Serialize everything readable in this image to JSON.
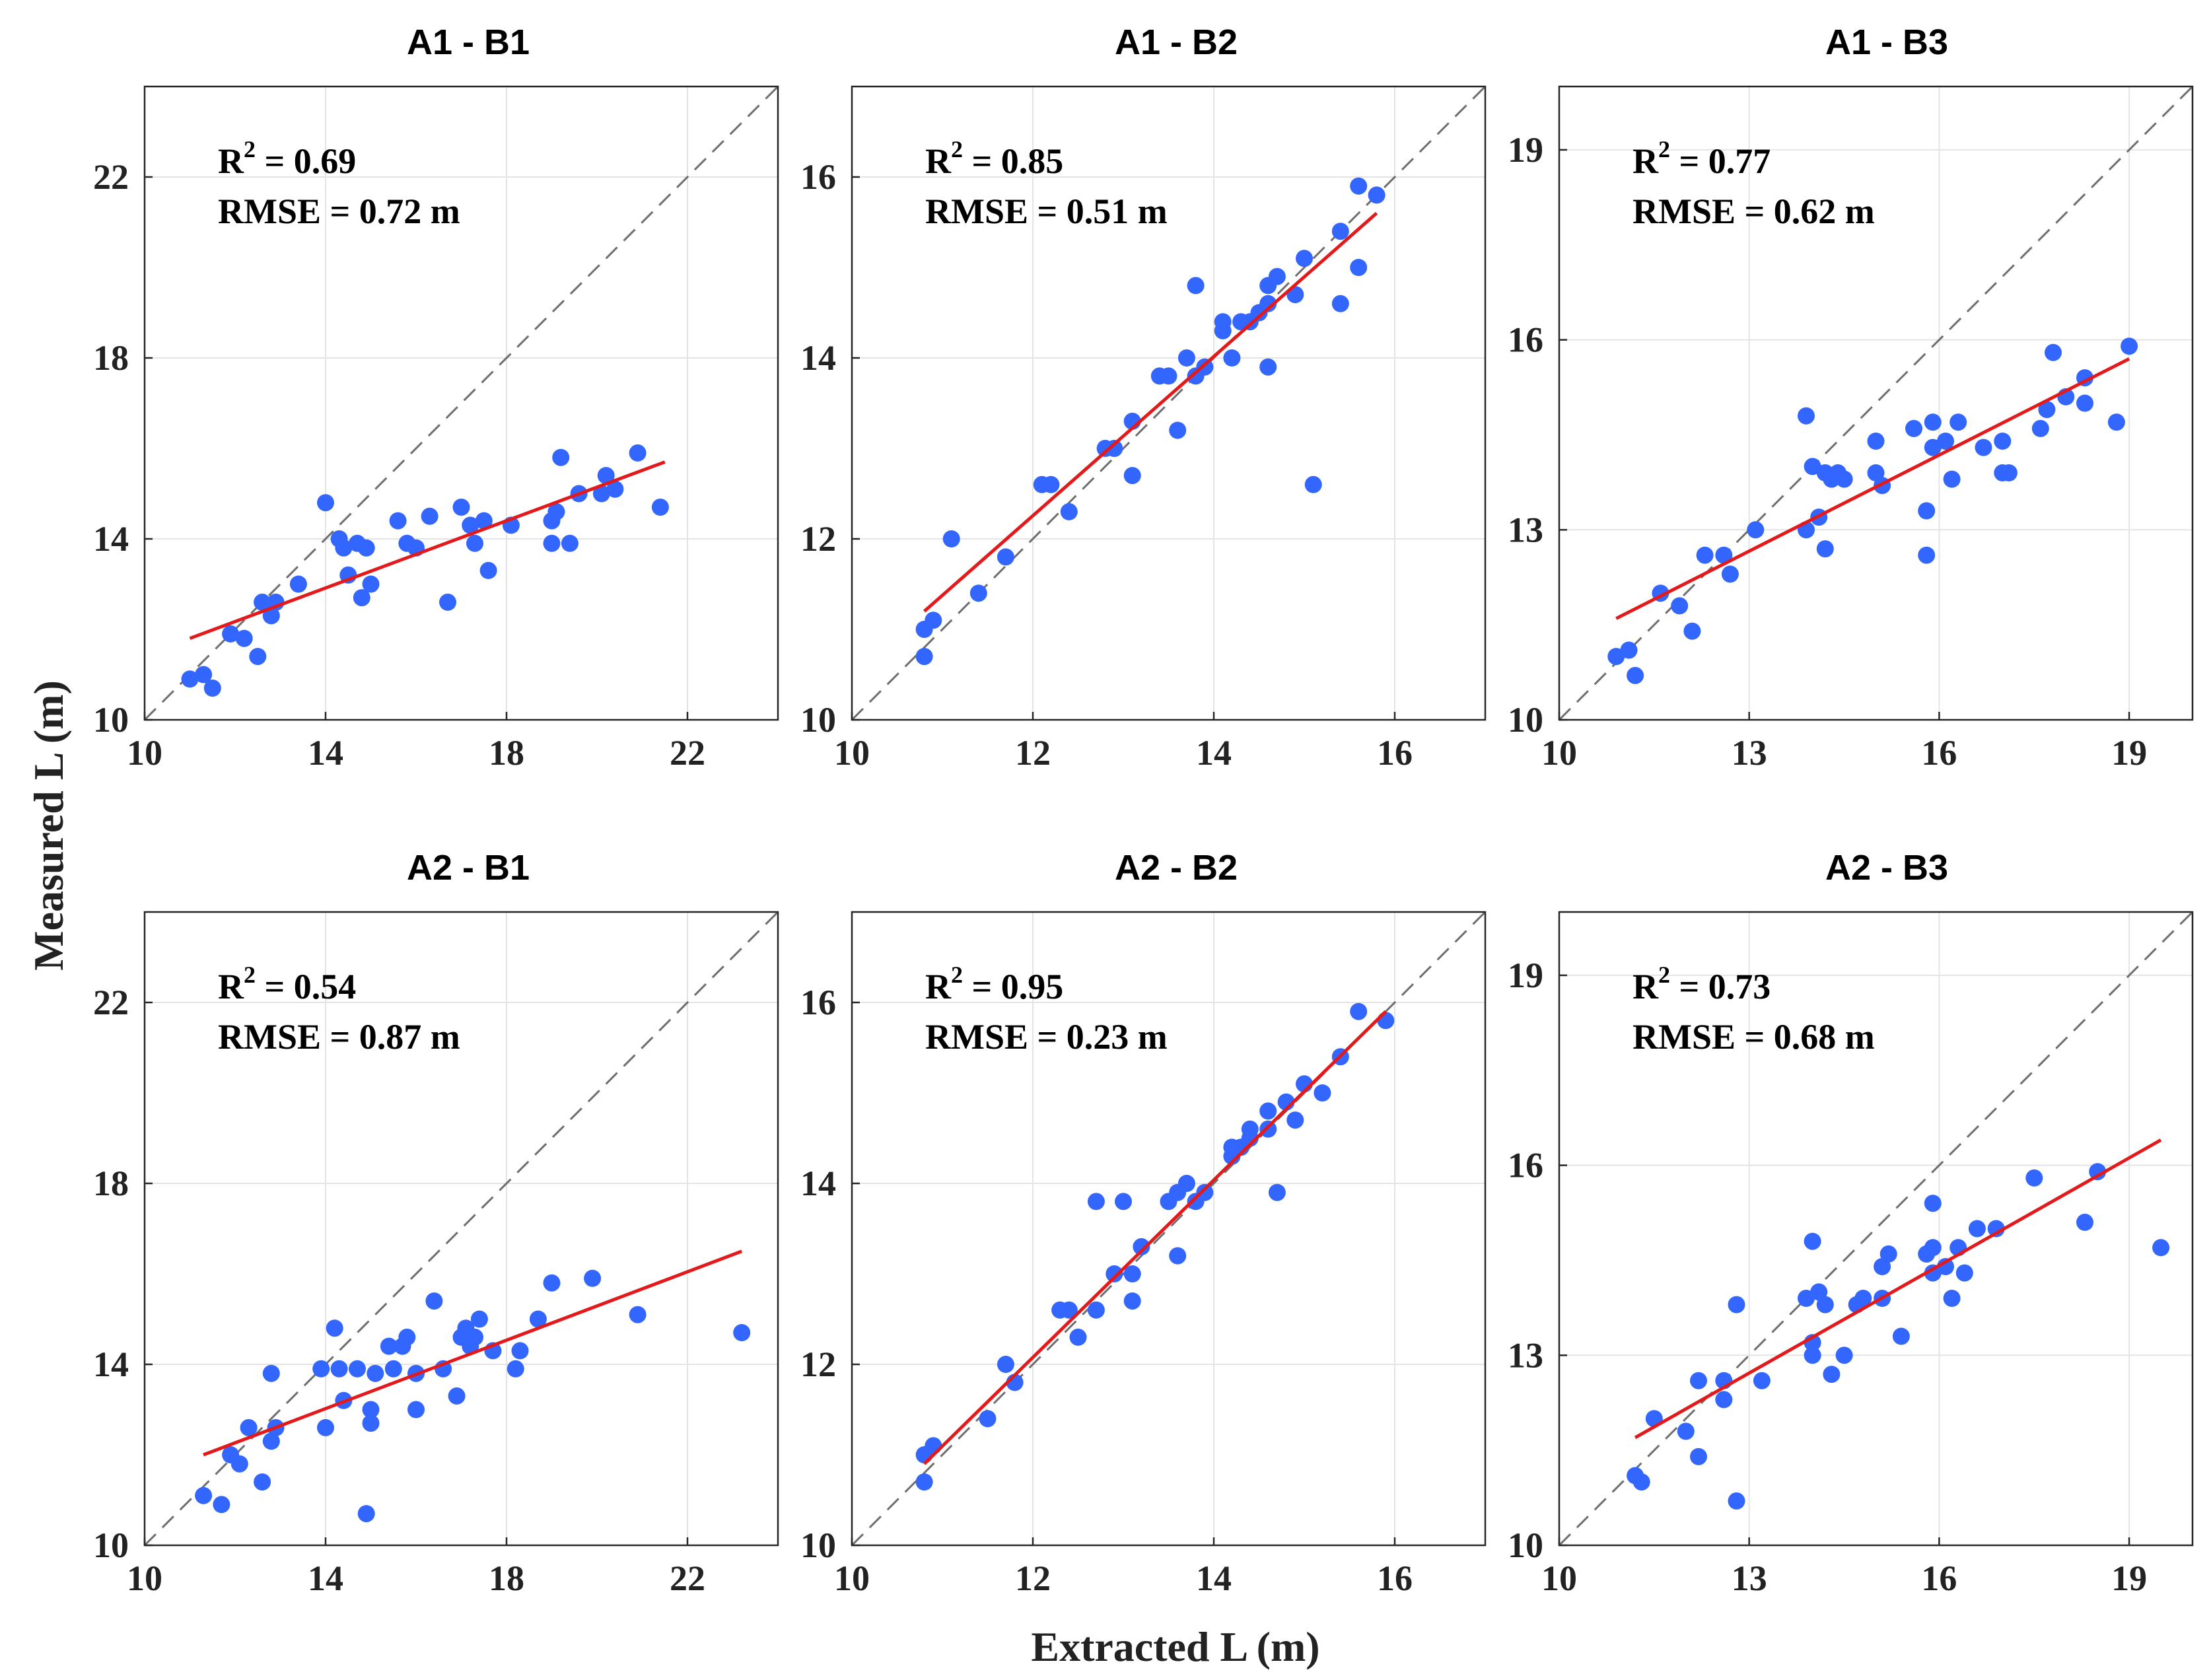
{
  "figure": {
    "ylabel": "Measured L (m)",
    "xlabel": "Extracted L (m)"
  },
  "colors": {
    "points": "#3366ff",
    "fit_line": "#e31a1c",
    "identity_line": "#6e6e6e"
  },
  "chart_data": [
    {
      "type": "scatter",
      "title": "A1 - B1",
      "r2_label": "R",
      "r2_sup": "2",
      "r2_value": " = 0.69",
      "rmse_text": "RMSE = 0.72 m",
      "xlim": [
        10,
        24
      ],
      "ylim": [
        10,
        24
      ],
      "xticks": [
        10,
        14,
        18,
        22
      ],
      "yticks": [
        10,
        14,
        18,
        22
      ],
      "grid": true,
      "identity_line": true,
      "fit_line": [
        [
          11.0,
          11.8
        ],
        [
          21.5,
          15.7
        ]
      ],
      "points": [
        [
          11.0,
          10.9
        ],
        [
          11.3,
          11.0
        ],
        [
          11.5,
          10.7
        ],
        [
          11.9,
          11.9
        ],
        [
          12.2,
          11.8
        ],
        [
          12.5,
          11.4
        ],
        [
          12.6,
          12.6
        ],
        [
          12.8,
          12.3
        ],
        [
          12.9,
          12.6
        ],
        [
          13.4,
          13.0
        ],
        [
          14.0,
          14.8
        ],
        [
          14.3,
          14.0
        ],
        [
          14.4,
          13.8
        ],
        [
          14.5,
          13.2
        ],
        [
          14.7,
          13.9
        ],
        [
          14.8,
          12.7
        ],
        [
          14.9,
          13.8
        ],
        [
          15.0,
          13.0
        ],
        [
          15.6,
          14.4
        ],
        [
          15.8,
          13.9
        ],
        [
          16.0,
          13.8
        ],
        [
          16.3,
          14.5
        ],
        [
          16.7,
          12.6
        ],
        [
          17.0,
          14.7
        ],
        [
          17.2,
          14.3
        ],
        [
          17.3,
          13.9
        ],
        [
          17.5,
          14.4
        ],
        [
          17.6,
          13.3
        ],
        [
          18.1,
          14.3
        ],
        [
          19.0,
          13.9
        ],
        [
          19.0,
          14.4
        ],
        [
          19.1,
          14.6
        ],
        [
          19.2,
          15.8
        ],
        [
          19.4,
          13.9
        ],
        [
          19.6,
          15.0
        ],
        [
          20.1,
          15.0
        ],
        [
          20.2,
          15.4
        ],
        [
          20.4,
          15.1
        ],
        [
          20.9,
          15.9
        ],
        [
          21.4,
          14.7
        ]
      ]
    },
    {
      "type": "scatter",
      "title": "A1 - B2",
      "r2_label": "R",
      "r2_sup": "2",
      "r2_value": " = 0.85",
      "rmse_text": "RMSE = 0.51 m",
      "xlim": [
        10,
        17
      ],
      "ylim": [
        10,
        17
      ],
      "xticks": [
        10,
        12,
        14,
        16
      ],
      "yticks": [
        10,
        12,
        14,
        16
      ],
      "grid": true,
      "identity_line": true,
      "fit_line": [
        [
          10.8,
          11.2
        ],
        [
          15.8,
          15.6
        ]
      ],
      "points": [
        [
          10.8,
          10.7
        ],
        [
          10.8,
          11.0
        ],
        [
          10.9,
          11.1
        ],
        [
          11.1,
          12.0
        ],
        [
          11.4,
          11.4
        ],
        [
          11.7,
          11.8
        ],
        [
          12.1,
          12.6
        ],
        [
          12.2,
          12.6
        ],
        [
          12.4,
          12.3
        ],
        [
          12.8,
          13.0
        ],
        [
          12.9,
          13.0
        ],
        [
          13.1,
          12.7
        ],
        [
          13.1,
          13.3
        ],
        [
          13.4,
          13.8
        ],
        [
          13.5,
          13.8
        ],
        [
          13.6,
          13.2
        ],
        [
          13.7,
          14.0
        ],
        [
          13.8,
          14.8
        ],
        [
          13.8,
          13.8
        ],
        [
          13.9,
          13.9
        ],
        [
          14.1,
          14.3
        ],
        [
          14.1,
          14.4
        ],
        [
          14.2,
          14.0
        ],
        [
          14.3,
          14.4
        ],
        [
          14.4,
          14.4
        ],
        [
          14.5,
          14.5
        ],
        [
          14.6,
          13.9
        ],
        [
          14.6,
          14.6
        ],
        [
          14.6,
          14.8
        ],
        [
          14.7,
          14.9
        ],
        [
          14.9,
          14.7
        ],
        [
          15.0,
          15.1
        ],
        [
          15.1,
          12.6
        ],
        [
          15.4,
          14.6
        ],
        [
          15.4,
          15.4
        ],
        [
          15.6,
          15.0
        ],
        [
          15.6,
          15.9
        ],
        [
          15.8,
          15.8
        ]
      ]
    },
    {
      "type": "scatter",
      "title": "A1 - B3",
      "r2_label": "R",
      "r2_sup": "2",
      "r2_value": " = 0.77",
      "rmse_text": "RMSE = 0.62 m",
      "xlim": [
        10,
        20
      ],
      "ylim": [
        10,
        20
      ],
      "xticks": [
        10,
        13,
        16,
        19
      ],
      "yticks": [
        10,
        13,
        16,
        19
      ],
      "grid": true,
      "identity_line": true,
      "fit_line": [
        [
          10.9,
          11.6
        ],
        [
          19.0,
          15.7
        ]
      ],
      "points": [
        [
          10.9,
          11.0
        ],
        [
          11.1,
          11.1
        ],
        [
          11.2,
          10.7
        ],
        [
          11.6,
          12.0
        ],
        [
          11.9,
          11.8
        ],
        [
          12.1,
          11.4
        ],
        [
          12.3,
          12.6
        ],
        [
          12.6,
          12.6
        ],
        [
          12.7,
          12.3
        ],
        [
          13.1,
          13.0
        ],
        [
          13.9,
          13.0
        ],
        [
          13.9,
          14.8
        ],
        [
          14.0,
          14.0
        ],
        [
          14.1,
          13.2
        ],
        [
          14.2,
          12.7
        ],
        [
          14.2,
          13.9
        ],
        [
          14.3,
          13.8
        ],
        [
          14.4,
          13.9
        ],
        [
          14.5,
          13.8
        ],
        [
          15.0,
          13.9
        ],
        [
          15.0,
          14.4
        ],
        [
          15.1,
          13.7
        ],
        [
          15.6,
          14.6
        ],
        [
          15.8,
          13.3
        ],
        [
          15.8,
          12.6
        ],
        [
          15.9,
          14.3
        ],
        [
          15.9,
          14.7
        ],
        [
          16.1,
          14.4
        ],
        [
          16.2,
          13.8
        ],
        [
          16.3,
          14.7
        ],
        [
          16.7,
          14.3
        ],
        [
          17.0,
          13.9
        ],
        [
          17.0,
          14.4
        ],
        [
          17.1,
          13.9
        ],
        [
          17.6,
          14.6
        ],
        [
          17.7,
          14.9
        ],
        [
          17.8,
          15.8
        ],
        [
          18.0,
          15.1
        ],
        [
          18.3,
          15.4
        ],
        [
          18.3,
          15.0
        ],
        [
          18.8,
          14.7
        ],
        [
          19.0,
          15.9
        ]
      ]
    },
    {
      "type": "scatter",
      "title": "A2 - B1",
      "r2_label": "R",
      "r2_sup": "2",
      "r2_value": " = 0.54",
      "rmse_text": "RMSE = 0.87 m",
      "xlim": [
        10,
        24
      ],
      "ylim": [
        10,
        24
      ],
      "xticks": [
        10,
        14,
        18,
        22
      ],
      "yticks": [
        10,
        14,
        18,
        22
      ],
      "grid": true,
      "identity_line": true,
      "fit_line": [
        [
          11.3,
          12.0
        ],
        [
          23.2,
          16.5
        ]
      ],
      "points": [
        [
          11.3,
          11.1
        ],
        [
          11.7,
          10.9
        ],
        [
          11.9,
          12.0
        ],
        [
          12.1,
          11.8
        ],
        [
          12.3,
          12.6
        ],
        [
          12.6,
          11.4
        ],
        [
          12.8,
          12.3
        ],
        [
          12.8,
          13.8
        ],
        [
          12.9,
          12.6
        ],
        [
          13.9,
          13.9
        ],
        [
          14.0,
          12.6
        ],
        [
          14.2,
          14.8
        ],
        [
          14.3,
          13.9
        ],
        [
          14.4,
          13.2
        ],
        [
          14.7,
          13.9
        ],
        [
          14.9,
          10.7
        ],
        [
          15.0,
          12.7
        ],
        [
          15.0,
          13.0
        ],
        [
          15.1,
          13.8
        ],
        [
          15.4,
          14.4
        ],
        [
          15.5,
          13.9
        ],
        [
          15.7,
          14.4
        ],
        [
          15.8,
          14.6
        ],
        [
          16.0,
          13.8
        ],
        [
          16.0,
          13.0
        ],
        [
          16.4,
          15.4
        ],
        [
          16.6,
          13.9
        ],
        [
          16.9,
          13.3
        ],
        [
          17.0,
          14.6
        ],
        [
          17.1,
          14.8
        ],
        [
          17.2,
          14.4
        ],
        [
          17.3,
          14.6
        ],
        [
          17.4,
          15.0
        ],
        [
          17.7,
          14.3
        ],
        [
          18.2,
          13.9
        ],
        [
          18.3,
          14.3
        ],
        [
          18.7,
          15.0
        ],
        [
          19.0,
          15.8
        ],
        [
          19.9,
          15.9
        ],
        [
          20.9,
          15.1
        ],
        [
          23.2,
          14.7
        ]
      ]
    },
    {
      "type": "scatter",
      "title": "A2 - B2",
      "r2_label": "R",
      "r2_sup": "2",
      "r2_value": " = 0.95",
      "rmse_text": "RMSE = 0.23 m",
      "xlim": [
        10,
        17
      ],
      "ylim": [
        10,
        17
      ],
      "xticks": [
        10,
        12,
        14,
        16
      ],
      "yticks": [
        10,
        12,
        14,
        16
      ],
      "grid": true,
      "identity_line": true,
      "fit_line": [
        [
          10.8,
          10.9
        ],
        [
          15.9,
          15.9
        ]
      ],
      "points": [
        [
          10.8,
          10.7
        ],
        [
          10.8,
          11.0
        ],
        [
          10.9,
          11.1
        ],
        [
          11.5,
          11.4
        ],
        [
          11.7,
          12.0
        ],
        [
          11.8,
          11.8
        ],
        [
          12.3,
          12.6
        ],
        [
          12.4,
          12.6
        ],
        [
          12.5,
          12.3
        ],
        [
          12.7,
          12.6
        ],
        [
          12.7,
          13.8
        ],
        [
          12.9,
          13.0
        ],
        [
          13.0,
          13.8
        ],
        [
          13.1,
          13.0
        ],
        [
          13.1,
          12.7
        ],
        [
          13.2,
          13.3
        ],
        [
          13.5,
          13.8
        ],
        [
          13.6,
          13.9
        ],
        [
          13.6,
          13.2
        ],
        [
          13.7,
          14.0
        ],
        [
          13.8,
          13.8
        ],
        [
          13.9,
          13.9
        ],
        [
          14.2,
          14.3
        ],
        [
          14.2,
          14.4
        ],
        [
          14.3,
          14.4
        ],
        [
          14.4,
          14.5
        ],
        [
          14.4,
          14.6
        ],
        [
          14.6,
          14.8
        ],
        [
          14.6,
          14.6
        ],
        [
          14.7,
          13.9
        ],
        [
          14.8,
          14.9
        ],
        [
          14.9,
          14.7
        ],
        [
          15.0,
          15.1
        ],
        [
          15.2,
          15.0
        ],
        [
          15.4,
          15.4
        ],
        [
          15.6,
          15.9
        ],
        [
          15.9,
          15.8
        ]
      ]
    },
    {
      "type": "scatter",
      "title": "A2 - B3",
      "r2_label": "R",
      "r2_sup": "2",
      "r2_value": " = 0.73",
      "rmse_text": "RMSE = 0.68 m",
      "xlim": [
        10,
        20
      ],
      "ylim": [
        10,
        20
      ],
      "xticks": [
        10,
        13,
        16,
        19
      ],
      "yticks": [
        10,
        13,
        16,
        19
      ],
      "grid": true,
      "identity_line": true,
      "fit_line": [
        [
          11.2,
          11.7
        ],
        [
          19.5,
          16.4
        ]
      ],
      "points": [
        [
          11.2,
          11.1
        ],
        [
          11.3,
          11.0
        ],
        [
          11.5,
          12.0
        ],
        [
          12.0,
          11.8
        ],
        [
          12.2,
          11.4
        ],
        [
          12.2,
          12.6
        ],
        [
          12.6,
          12.3
        ],
        [
          12.6,
          12.6
        ],
        [
          12.8,
          13.8
        ],
        [
          12.8,
          10.7
        ],
        [
          13.2,
          12.6
        ],
        [
          13.9,
          13.9
        ],
        [
          14.0,
          14.8
        ],
        [
          14.0,
          13.2
        ],
        [
          14.0,
          13.0
        ],
        [
          14.1,
          14.0
        ],
        [
          14.2,
          13.8
        ],
        [
          14.3,
          12.7
        ],
        [
          14.5,
          13.0
        ],
        [
          14.7,
          13.8
        ],
        [
          14.8,
          13.9
        ],
        [
          15.1,
          13.9
        ],
        [
          15.1,
          14.4
        ],
        [
          15.2,
          14.6
        ],
        [
          15.4,
          13.3
        ],
        [
          15.8,
          14.6
        ],
        [
          15.9,
          14.3
        ],
        [
          15.9,
          14.7
        ],
        [
          15.9,
          15.4
        ],
        [
          16.1,
          14.4
        ],
        [
          16.2,
          13.9
        ],
        [
          16.3,
          14.7
        ],
        [
          16.4,
          14.3
        ],
        [
          16.6,
          15.0
        ],
        [
          16.9,
          15.0
        ],
        [
          17.5,
          15.8
        ],
        [
          18.3,
          15.1
        ],
        [
          18.5,
          15.9
        ],
        [
          19.5,
          14.7
        ]
      ]
    }
  ]
}
